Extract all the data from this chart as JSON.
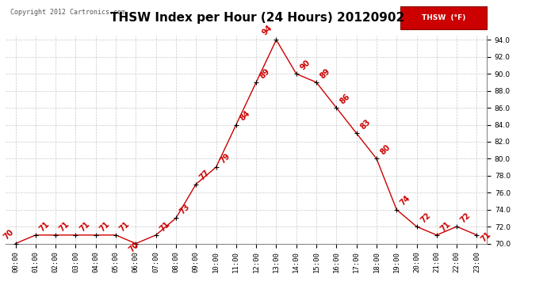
{
  "title": "THSW Index per Hour (24 Hours) 20120902",
  "copyright": "Copyright 2012 Cartronics.com",
  "legend_label": "THSW  (°F)",
  "hours": [
    0,
    1,
    2,
    3,
    4,
    5,
    6,
    7,
    8,
    9,
    10,
    11,
    12,
    13,
    14,
    15,
    16,
    17,
    18,
    19,
    20,
    21,
    22,
    23
  ],
  "values": [
    70,
    71,
    71,
    71,
    71,
    71,
    70,
    71,
    73,
    77,
    79,
    84,
    89,
    94,
    90,
    89,
    86,
    83,
    80,
    74,
    72,
    71,
    72,
    71
  ],
  "ylim_min": 70.0,
  "ylim_max": 94.5,
  "line_color": "#cc0000",
  "marker_color": "#000000",
  "grid_color": "#bbbbbb",
  "bg_color": "#ffffff",
  "legend_bg": "#cc0000",
  "legend_text_color": "#ffffff",
  "title_fontsize": 11,
  "tick_fontsize": 6.5,
  "annotation_fontsize": 7,
  "annotation_color": "#cc0000",
  "copyright_color": "#555555",
  "yticks": [
    70.0,
    72.0,
    74.0,
    76.0,
    78.0,
    80.0,
    82.0,
    84.0,
    86.0,
    88.0,
    90.0,
    92.0,
    94.0
  ]
}
